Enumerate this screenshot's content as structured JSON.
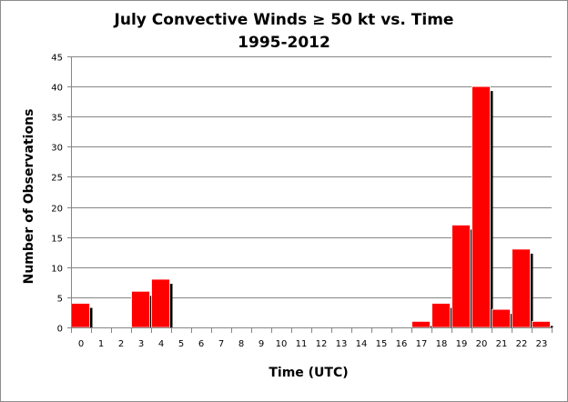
{
  "chart_data": {
    "type": "bar",
    "title": "July Convective Winds ≥ 50 kt vs. Time",
    "subtitle": "1995-2012",
    "xlabel": "Time (UTC)",
    "ylabel": "Number of Observations",
    "categories": [
      "0",
      "1",
      "2",
      "3",
      "4",
      "5",
      "6",
      "7",
      "8",
      "9",
      "10",
      "11",
      "12",
      "13",
      "14",
      "15",
      "16",
      "17",
      "18",
      "19",
      "20",
      "21",
      "22",
      "23"
    ],
    "values": [
      4,
      0,
      0,
      6,
      8,
      0,
      0,
      0,
      0,
      0,
      0,
      0,
      0,
      0,
      0,
      0,
      0,
      1,
      4,
      17,
      40,
      3,
      13,
      1
    ],
    "ylim": [
      0,
      45
    ],
    "yticks": [
      "0",
      "5",
      "10",
      "15",
      "20",
      "25",
      "30",
      "35",
      "40",
      "45"
    ],
    "grid": true,
    "legend": "none",
    "bar_color": "#ff0000",
    "shadow_color": "#000000",
    "grid_color": "#868686"
  }
}
